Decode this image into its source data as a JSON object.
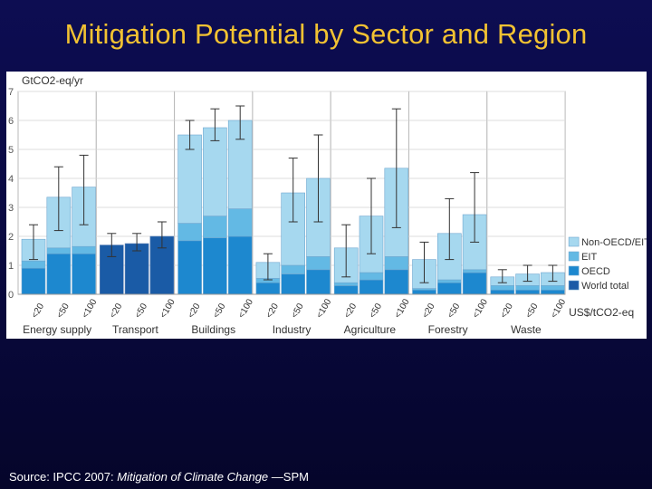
{
  "slide": {
    "title": "Mitigation Potential by Sector and Region",
    "source_prefix": "Source: IPCC 2007: ",
    "source_title": "Mitigation of Climate Change",
    "source_suffix": " —SPM"
  },
  "chart_data": {
    "type": "bar",
    "stacked": true,
    "ylabel": "GtCO2-eq/yr",
    "xlabel": "US$/tCO2-eq",
    "ylim": [
      0,
      7
    ],
    "yticks": [
      0,
      1,
      2,
      3,
      4,
      5,
      6,
      7
    ],
    "grid": true,
    "legend_position": "right",
    "categories": [
      "<20",
      "<50",
      "<100"
    ],
    "colors": {
      "Non-OECD/EIT": "#a6d8ef",
      "EIT": "#63b9e4",
      "OECD": "#1d88cf",
      "World total": "#1a5ba6"
    },
    "legend": [
      "Non-OECD/EIT",
      "EIT",
      "OECD",
      "World total"
    ],
    "sectors": [
      {
        "name": "Energy supply",
        "bars": [
          {
            "cost": "<20",
            "OECD": 0.9,
            "EIT": 0.25,
            "Non-OECD/EIT": 0.75,
            "err": [
              1.2,
              2.4
            ]
          },
          {
            "cost": "<50",
            "OECD": 1.4,
            "EIT": 0.2,
            "Non-OECD/EIT": 1.75,
            "err": [
              2.2,
              4.4
            ]
          },
          {
            "cost": "<100",
            "OECD": 1.4,
            "EIT": 0.25,
            "Non-OECD/EIT": 2.05,
            "err": [
              2.4,
              4.8
            ]
          }
        ]
      },
      {
        "name": "Transport",
        "bars": [
          {
            "cost": "<20",
            "World total": 1.7,
            "err": [
              1.3,
              2.1
            ]
          },
          {
            "cost": "<50",
            "World total": 1.75,
            "err": [
              1.5,
              2.1
            ]
          },
          {
            "cost": "<100",
            "World total": 2.0,
            "err": [
              1.6,
              2.5
            ]
          }
        ]
      },
      {
        "name": "Buildings",
        "bars": [
          {
            "cost": "<20",
            "OECD": 1.85,
            "EIT": 0.6,
            "Non-OECD/EIT": 3.05,
            "err": [
              5.0,
              6.0
            ]
          },
          {
            "cost": "<50",
            "OECD": 1.95,
            "EIT": 0.75,
            "Non-OECD/EIT": 3.05,
            "err": [
              5.3,
              6.4
            ]
          },
          {
            "cost": "<100",
            "OECD": 2.0,
            "EIT": 0.95,
            "Non-OECD/EIT": 3.05,
            "err": [
              5.35,
              6.5
            ]
          }
        ]
      },
      {
        "name": "Industry",
        "bars": [
          {
            "cost": "<20",
            "OECD": 0.4,
            "EIT": 0.15,
            "Non-OECD/EIT": 0.55,
            "err": [
              0.5,
              1.4
            ]
          },
          {
            "cost": "<50",
            "OECD": 0.7,
            "EIT": 0.3,
            "Non-OECD/EIT": 2.5,
            "err": [
              2.5,
              4.7
            ]
          },
          {
            "cost": "<100",
            "OECD": 0.85,
            "EIT": 0.45,
            "Non-OECD/EIT": 2.7,
            "err": [
              2.5,
              5.5
            ]
          }
        ]
      },
      {
        "name": "Agriculture",
        "bars": [
          {
            "cost": "<20",
            "OECD": 0.3,
            "EIT": 0.1,
            "Non-OECD/EIT": 1.2,
            "err": [
              0.6,
              2.4
            ]
          },
          {
            "cost": "<50",
            "OECD": 0.5,
            "EIT": 0.25,
            "Non-OECD/EIT": 1.95,
            "err": [
              1.4,
              4.0
            ]
          },
          {
            "cost": "<100",
            "OECD": 0.85,
            "EIT": 0.45,
            "Non-OECD/EIT": 3.05,
            "err": [
              2.3,
              6.4
            ]
          }
        ]
      },
      {
        "name": "Forestry",
        "bars": [
          {
            "cost": "<20",
            "OECD": 0.15,
            "EIT": 0.05,
            "Non-OECD/EIT": 1.0,
            "err": [
              0.4,
              1.8
            ]
          },
          {
            "cost": "<50",
            "OECD": 0.4,
            "EIT": 0.1,
            "Non-OECD/EIT": 1.6,
            "err": [
              1.2,
              3.3
            ]
          },
          {
            "cost": "<100",
            "OECD": 0.75,
            "EIT": 0.1,
            "Non-OECD/EIT": 1.9,
            "err": [
              1.8,
              4.2
            ]
          }
        ]
      },
      {
        "name": "Waste",
        "bars": [
          {
            "cost": "<20",
            "OECD": 0.15,
            "EIT": 0.15,
            "Non-OECD/EIT": 0.3,
            "err": [
              0.4,
              0.85
            ]
          },
          {
            "cost": "<50",
            "OECD": 0.15,
            "EIT": 0.15,
            "Non-OECD/EIT": 0.4,
            "err": [
              0.45,
              1.0
            ]
          },
          {
            "cost": "<100",
            "OECD": 0.15,
            "EIT": 0.15,
            "Non-OECD/EIT": 0.45,
            "err": [
              0.45,
              1.0
            ]
          }
        ]
      }
    ]
  }
}
